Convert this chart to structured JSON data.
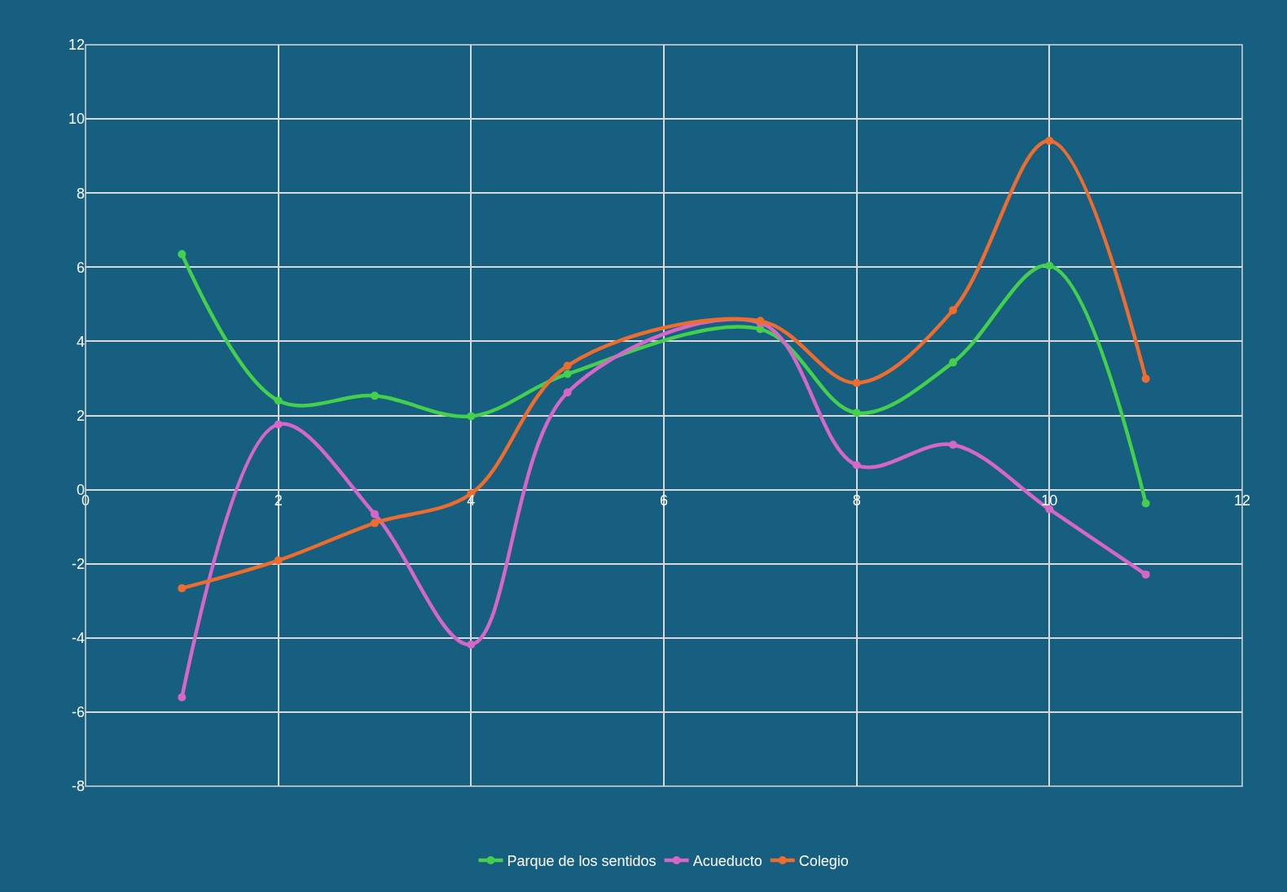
{
  "chart_data": {
    "type": "line",
    "x": [
      1,
      2,
      3,
      4,
      5,
      7,
      8,
      9,
      10,
      11
    ],
    "series": [
      {
        "name": "Parque de los sentidos",
        "color": "#44cf4c",
        "values": [
          6.35,
          2.4,
          2.53,
          1.98,
          3.12,
          4.33,
          2.07,
          3.43,
          6.04,
          -0.37
        ]
      },
      {
        "name": "Acueducto",
        "color": "#d766c9",
        "values": [
          -5.6,
          1.76,
          -0.66,
          -4.18,
          2.62,
          4.5,
          0.66,
          1.21,
          -0.53,
          -2.29
        ]
      },
      {
        "name": "Colegio",
        "color": "#ee6d2e",
        "values": [
          -2.66,
          -1.91,
          -0.9,
          -0.11,
          3.34,
          4.55,
          2.88,
          4.84,
          9.41,
          2.99
        ]
      }
    ],
    "xlim": [
      0,
      12
    ],
    "xticks": [
      0,
      2,
      4,
      6,
      8,
      10,
      12
    ],
    "ylim": [
      -8,
      12
    ],
    "yticks": [
      -8,
      -6,
      -4,
      -2,
      0,
      2,
      4,
      6,
      8,
      10,
      12
    ],
    "grid": true,
    "legend": "bottom",
    "marker": "circle",
    "line_style": "solid"
  }
}
